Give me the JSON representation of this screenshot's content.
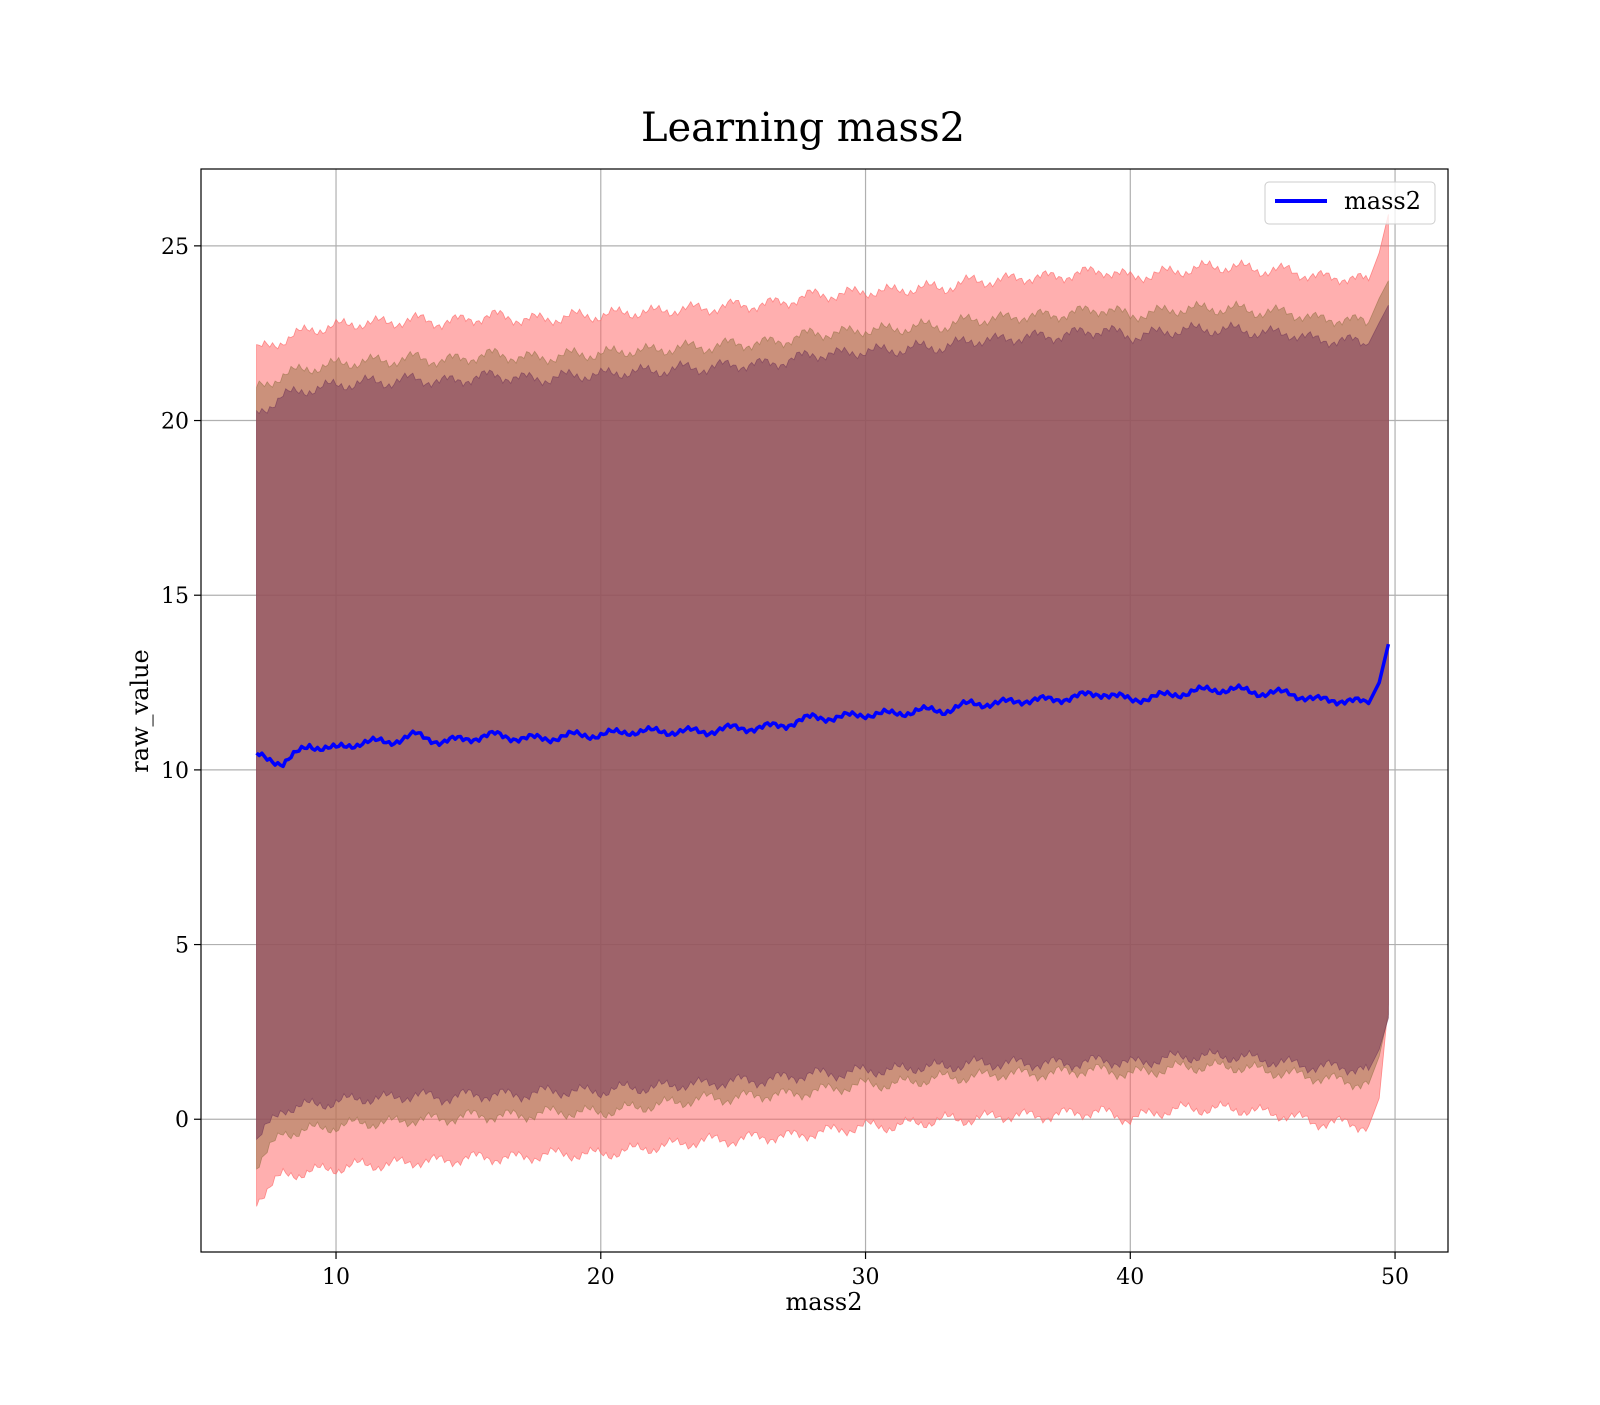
{
  "chart_data": {
    "type": "line",
    "title": "Learning mass2",
    "xlabel": "mass2",
    "ylabel": "raw_value",
    "xlim": [
      4.9,
      52.0
    ],
    "ylim": [
      -3.8,
      27.2
    ],
    "xticks": [
      10,
      20,
      30,
      40,
      50
    ],
    "yticks": [
      0,
      5,
      10,
      15,
      20,
      25
    ],
    "grid": true,
    "legend": {
      "position": "top-right",
      "entries": [
        "mass2"
      ]
    },
    "colors": {
      "line": "#0000ff",
      "band_outer": "#ff6666",
      "band_middle": "#a07850",
      "band_inner": "#7a3e5c"
    },
    "x": [
      7,
      8,
      9,
      10,
      11,
      12,
      13,
      14,
      15,
      16,
      17,
      18,
      19,
      20,
      21,
      22,
      23,
      24,
      25,
      26,
      27,
      28,
      29,
      30,
      31,
      32,
      33,
      34,
      35,
      36,
      37,
      38,
      39,
      40,
      41,
      42,
      43,
      44,
      45,
      46,
      47,
      48,
      49,
      49.4,
      49.75
    ],
    "series": [
      {
        "name": "mass2",
        "values": [
          10.4,
          10.2,
          10.7,
          10.6,
          10.8,
          10.8,
          11.0,
          10.8,
          10.9,
          11.0,
          10.9,
          10.9,
          11.0,
          11.0,
          11.1,
          11.1,
          11.1,
          11.1,
          11.2,
          11.2,
          11.3,
          11.5,
          11.5,
          11.6,
          11.6,
          11.7,
          11.7,
          11.9,
          11.9,
          12.0,
          12.0,
          12.1,
          12.2,
          12.0,
          12.1,
          12.2,
          12.3,
          12.3,
          12.2,
          12.2,
          12.0,
          12.0,
          11.9,
          12.5,
          13.6
        ]
      }
    ],
    "bands": [
      {
        "lower": [
          -2.3,
          -1.6,
          -1.5,
          -1.4,
          -1.3,
          -1.3,
          -1.2,
          -1.2,
          -1.1,
          -1.1,
          -1.1,
          -1.0,
          -1.0,
          -1.0,
          -0.9,
          -0.8,
          -0.7,
          -0.6,
          -0.6,
          -0.5,
          -0.5,
          -0.4,
          -0.3,
          -0.2,
          -0.2,
          -0.1,
          0.0,
          0.0,
          0.1,
          0.1,
          0.1,
          0.2,
          0.2,
          0.0,
          0.2,
          0.3,
          0.3,
          0.3,
          0.2,
          0.1,
          -0.1,
          -0.1,
          -0.2,
          0.6,
          3.3
        ],
        "upper": [
          22.0,
          22.3,
          22.6,
          22.7,
          22.8,
          22.8,
          22.9,
          22.8,
          22.9,
          23.0,
          22.9,
          22.9,
          23.0,
          23.0,
          23.1,
          23.1,
          23.2,
          23.2,
          23.3,
          23.3,
          23.4,
          23.6,
          23.6,
          23.7,
          23.7,
          23.8,
          23.8,
          24.0,
          24.0,
          24.1,
          24.1,
          24.2,
          24.3,
          24.1,
          24.2,
          24.3,
          24.4,
          24.4,
          24.3,
          24.3,
          24.1,
          24.1,
          24.0,
          24.8,
          25.9
        ]
      },
      {
        "lower": [
          -1.3,
          -0.4,
          -0.3,
          -0.2,
          -0.1,
          -0.1,
          0.0,
          0.0,
          0.1,
          0.1,
          0.1,
          0.2,
          0.2,
          0.2,
          0.3,
          0.4,
          0.5,
          0.6,
          0.6,
          0.7,
          0.7,
          0.8,
          0.9,
          1.0,
          1.0,
          1.1,
          1.2,
          1.2,
          1.3,
          1.3,
          1.3,
          1.4,
          1.4,
          1.3,
          1.4,
          1.5,
          1.5,
          1.5,
          1.4,
          1.3,
          1.2,
          1.1,
          1.0,
          1.8,
          3.0
        ],
        "upper": [
          20.9,
          21.3,
          21.5,
          21.6,
          21.7,
          21.7,
          21.8,
          21.7,
          21.8,
          21.9,
          21.8,
          21.8,
          21.9,
          21.9,
          22.0,
          22.0,
          22.1,
          22.1,
          22.2,
          22.2,
          22.3,
          22.5,
          22.5,
          22.6,
          22.6,
          22.7,
          22.7,
          22.9,
          22.9,
          23.0,
          23.0,
          23.1,
          23.2,
          23.0,
          23.1,
          23.2,
          23.2,
          23.2,
          23.1,
          23.1,
          22.9,
          22.9,
          22.8,
          23.5,
          24.0
        ]
      },
      {
        "lower": [
          -0.6,
          0.3,
          0.4,
          0.5,
          0.6,
          0.6,
          0.7,
          0.6,
          0.7,
          0.7,
          0.7,
          0.8,
          0.8,
          0.8,
          0.9,
          0.9,
          1.0,
          1.0,
          1.1,
          1.1,
          1.2,
          1.3,
          1.3,
          1.4,
          1.4,
          1.5,
          1.5,
          1.6,
          1.6,
          1.6,
          1.6,
          1.6,
          1.7,
          1.6,
          1.7,
          1.8,
          1.8,
          1.8,
          1.7,
          1.6,
          1.5,
          1.5,
          1.4,
          2.0,
          2.9
        ],
        "upper": [
          20.2,
          20.7,
          20.9,
          21.0,
          21.1,
          21.1,
          21.2,
          21.1,
          21.2,
          21.3,
          21.2,
          21.2,
          21.3,
          21.3,
          21.4,
          21.4,
          21.5,
          21.5,
          21.6,
          21.6,
          21.7,
          21.9,
          21.9,
          22.0,
          22.0,
          22.1,
          22.1,
          22.3,
          22.3,
          22.4,
          22.4,
          22.5,
          22.6,
          22.4,
          22.5,
          22.6,
          22.6,
          22.6,
          22.5,
          22.5,
          22.3,
          22.3,
          22.2,
          22.8,
          23.3
        ]
      }
    ]
  }
}
